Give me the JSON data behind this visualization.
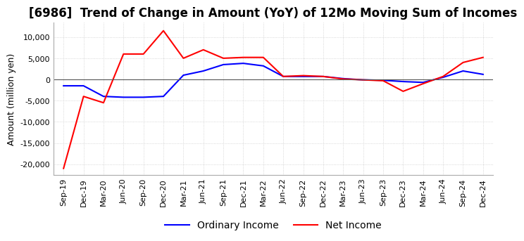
{
  "title": "[6986]  Trend of Change in Amount (YoY) of 12Mo Moving Sum of Incomes",
  "ylabel": "Amount (million yen)",
  "x_labels": [
    "Sep-19",
    "Dec-19",
    "Mar-20",
    "Jun-20",
    "Sep-20",
    "Dec-20",
    "Mar-21",
    "Jun-21",
    "Sep-21",
    "Dec-21",
    "Mar-22",
    "Jun-22",
    "Sep-22",
    "Dec-22",
    "Mar-23",
    "Jun-23",
    "Sep-23",
    "Dec-23",
    "Mar-24",
    "Jun-24",
    "Sep-24",
    "Dec-24"
  ],
  "ordinary_income": [
    -1500,
    -1500,
    -4000,
    -4200,
    -4200,
    -4000,
    1000,
    2000,
    3500,
    3800,
    3200,
    700,
    700,
    700,
    200,
    -100,
    -200,
    -500,
    -700,
    500,
    2000,
    1200
  ],
  "net_income": [
    -21000,
    -4000,
    -5500,
    6000,
    6000,
    11500,
    5000,
    7000,
    5000,
    5200,
    5200,
    700,
    900,
    700,
    100,
    -100,
    -300,
    -2800,
    -1000,
    700,
    4000,
    5200
  ],
  "ordinary_color": "#0000ff",
  "net_color": "#ff0000",
  "ylim": [
    -22500,
    13500
  ],
  "yticks": [
    -20000,
    -15000,
    -10000,
    -5000,
    0,
    5000,
    10000
  ],
  "grid_color": "#cccccc",
  "background_color": "#ffffff",
  "title_fontsize": 12,
  "label_fontsize": 9,
  "tick_fontsize": 8
}
